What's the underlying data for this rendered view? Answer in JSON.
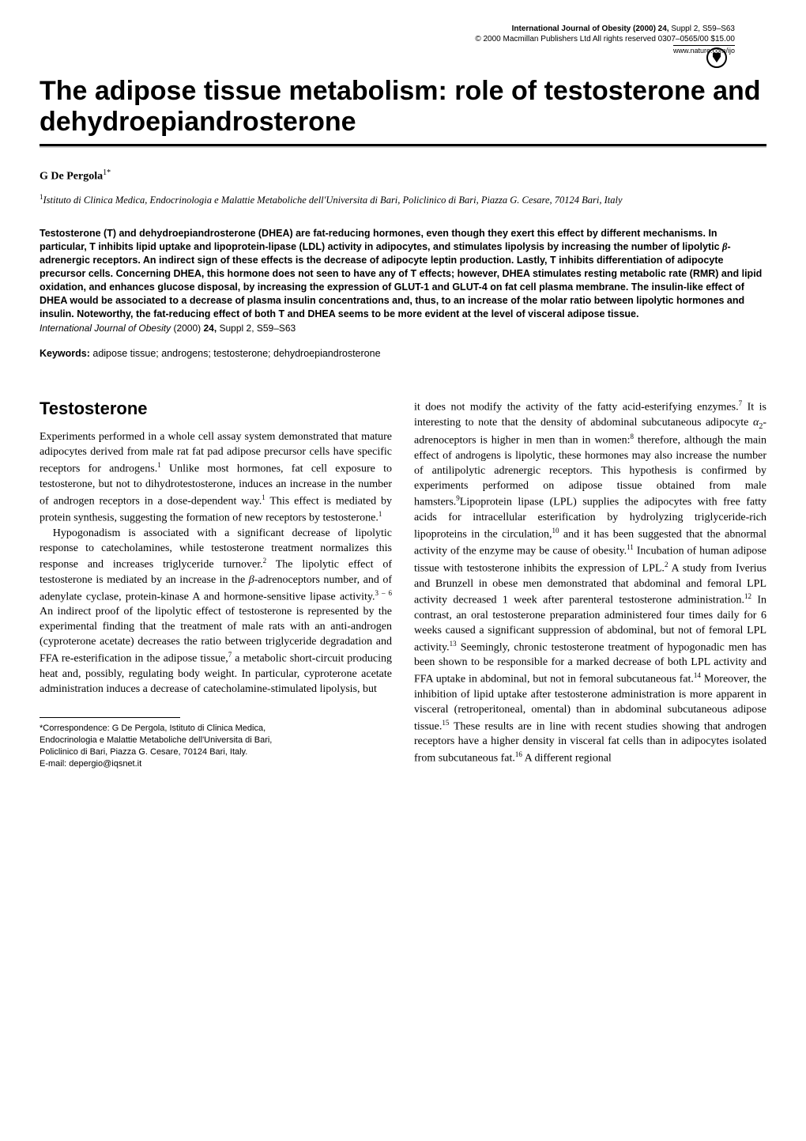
{
  "journal": {
    "line1_prefix": "International Journal of Obesity (2000) 24,",
    "line1_suffix": " Suppl 2, S59–S63",
    "line2": "© 2000 Macmillan Publishers Ltd   All rights reserved   0307–0565/00   $15.00",
    "url": "www.nature.com/ijo"
  },
  "title": "The adipose tissue metabolism: role of testosterone and dehydroepiandrosterone",
  "author": {
    "name": "G De Pergola",
    "sup": "1*"
  },
  "affiliation": {
    "sup": "1",
    "text": "Istituto di Clinica Medica, Endocrinologia e Malattie Metaboliche dell'Universita di Bari, Policlinico di Bari, Piazza G. Cesare, 70124 Bari, Italy"
  },
  "abstract_parts": {
    "p1": "Testosterone (T) and dehydroepiandrosterone (DHEA) are fat-reducing hormones, even though they exert this effect by different mechanisms. In particular, T inhibits lipid uptake and lipoprotein-lipase (LDL) activity in adipocytes, and stimulates lipolysis by increasing the number of lipolytic ",
    "beta": "β",
    "p2": "-adrenergic receptors. An indirect sign of these effects is the decrease of adipocyte leptin production. Lastly, T inhibits differentiation of adipocyte precursor cells. Concerning DHEA, this hormone does not seen to have any of T effects; however, DHEA stimulates resting metabolic rate (RMR) and lipid oxidation, and enhances glucose disposal, by increasing the expression of GLUT-1 and GLUT-4 on fat cell plasma membrane. The insulin-like effect of DHEA would be associated to a decrease of plasma insulin concentrations and, thus, to an increase of the molar ratio between lipolytic hormones and insulin. Noteworthy, the fat-reducing effect of both T and DHEA seems to be more evident at the level of visceral adipose tissue."
  },
  "citation": {
    "journal": "International Journal of Obesity",
    "year": " (2000) ",
    "vol": "24,",
    "rest": " Suppl 2, S59–S63"
  },
  "keywords": {
    "label": "Keywords:",
    "text": " adipose tissue; androgens; testosterone; dehydroepiandrosterone"
  },
  "section_heading": "Testosterone",
  "colL": {
    "p1a": "Experiments performed in a whole cell assay system demonstrated that mature adipocytes derived from male rat fat pad adipose precursor cells have specific receptors for androgens.",
    "s1": "1",
    "p1b": " Unlike most hormones, fat cell exposure to testosterone, but not to dihydrotestosterone, induces an increase in the number of androgen receptors in a dose-dependent way.",
    "s2": "1",
    "p1c": " This effect is mediated by protein synthesis, suggesting the formation of new receptors by testosterone.",
    "s3": "1",
    "p2a": "Hypogonadism is associated with a significant decrease of lipolytic response to catecholamines, while testosterone treatment normalizes this response and increases triglyceride turnover.",
    "s4": "2",
    "p2b": " The lipolytic effect of testosterone is mediated by an increase in the ",
    "beta": "β",
    "p2c": "-adrenoceptors number, and of adenylate cyclase, protein-kinase A and hormone-sensitive lipase activity.",
    "s5": "3 – 6",
    "p2d": " An indirect proof of the lipolytic effect of testosterone is represented by the experimental finding that the treatment of male rats with an anti-androgen (cyproterone acetate) decreases the ratio between triglyceride degradation and FFA re-esterification in the adipose tissue,",
    "s6": "7",
    "p2e": " a metabolic short-circuit producing heat and, possibly, regulating body weight. In particular, cyproterone acetate administration induces a decrease of catecholamine-stimulated lipolysis, but"
  },
  "colR": {
    "p1a": "it does not modify the activity of the fatty acid-esterifying enzymes.",
    "s7": "7",
    "p1b": " It is interesting to note that the density of abdominal subcutaneous adipocyte ",
    "alpha": "α",
    "sub2": "2",
    "p1c": "-adrenoceptors is higher in men than in women:",
    "s8": "8",
    "p1d": " therefore, although the main effect of androgens is lipolytic, these hormones may also increase the number of antilipolytic adrenergic receptors. This hypothesis is confirmed by experiments performed on adipose tissue obtained from male hamsters.",
    "s9": "9",
    "p1e": "Lipoprotein lipase (LPL) supplies the adipocytes with free fatty acids for intracellular esterification by hydrolyzing triglyceride-rich lipoproteins in the circulation,",
    "s10": "10",
    "p1f": " and it has been suggested that the abnormal activity of the enzyme may be cause of obesity.",
    "s11": "11",
    "p1g": " Incubation of human adipose tissue with testosterone inhibits the expression of LPL.",
    "s12": "2",
    "p1h": " A study from Iverius and Brunzell in obese men demonstrated that abdominal and femoral LPL activity decreased 1 week after parenteral testosterone administration.",
    "s13": "12",
    "p1i": " In contrast, an oral testosterone preparation administered four times daily for 6 weeks caused a significant suppression of abdominal, but not of femoral LPL activity.",
    "s14": "13",
    "p1j": " Seemingly, chronic testosterone treatment of hypogonadic men has been shown to be responsible for a marked decrease of both LPL activity and FFA uptake in abdominal, but not in femoral subcutaneous fat.",
    "s15": "14",
    "p1k": " Moreover, the inhibition of lipid uptake after testosterone administration is more apparent in visceral (retroperitoneal, omental) than in abdominal subcutaneous adipose tissue.",
    "s16": "15",
    "p1l": " These results are in line with recent studies showing that androgen receptors have a higher density in visceral fat cells than in adipocytes isolated from subcutaneous fat.",
    "s17": "16",
    "p1m": " A different regional"
  },
  "correspondence": {
    "l1": "*Correspondence: G De Pergola, Istituto di Clinica Medica,",
    "l2": "Endocrinologia e Malattie Metaboliche dell'Universita di Bari,",
    "l3": "Policlinico di Bari, Piazza G. Cesare, 70124 Bari, Italy.",
    "l4": "E-mail: depergio@iqsnet.it"
  },
  "style": {
    "background": "#ffffff",
    "text_color": "#000000",
    "title_fontsize": 34,
    "heading_fontsize": 22,
    "body_fontsize": 14,
    "abstract_fontsize": 12.5,
    "column_gap": 28
  }
}
